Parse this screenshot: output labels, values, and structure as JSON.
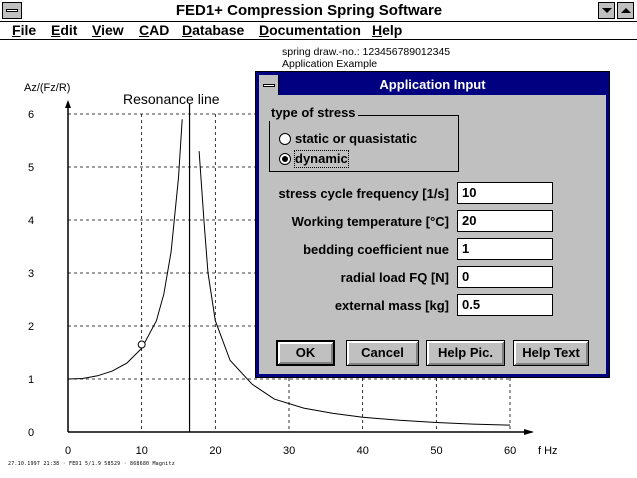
{
  "window": {
    "title": "FED1+   Compression Spring Software"
  },
  "menu": [
    {
      "label": "File"
    },
    {
      "label": "Edit"
    },
    {
      "label": "View"
    },
    {
      "label": "CAD"
    },
    {
      "label": "Database"
    },
    {
      "label": "Documentation"
    },
    {
      "label": "Help"
    }
  ],
  "spring_info": {
    "line1": "spring   draw.-no.: 123456789012345",
    "line2": "Application Example"
  },
  "footer_stamp": "27.10.1997 21:38 · FED1 5/1.9 58529 · 868680 Magnitz",
  "chart_data": {
    "type": "line",
    "ylabel": "Az/(Fz/R)",
    "xlabel": "f Hz",
    "annotation": "Resonance line",
    "xlim": [
      0,
      60
    ],
    "ylim": [
      0,
      6
    ],
    "x_ticks": [
      "0",
      "10",
      "20",
      "30",
      "40",
      "50",
      "60"
    ],
    "y_ticks": [
      "0",
      "1",
      "2",
      "3",
      "4",
      "5",
      "6"
    ],
    "resonance_frequency": 16.5,
    "operating_point": {
      "x": 10,
      "y": 1.65
    },
    "grid": "dashed",
    "series": [
      {
        "x": [
          0,
          2,
          4,
          6,
          8,
          10,
          12,
          13,
          14,
          15,
          15.5
        ],
        "y": [
          1.0,
          1.01,
          1.06,
          1.15,
          1.3,
          1.58,
          2.1,
          2.6,
          3.4,
          4.8,
          5.9
        ]
      },
      {
        "x": [
          17.8,
          18.5,
          19,
          20,
          22,
          25,
          28,
          32,
          36,
          40,
          45,
          50,
          55,
          60
        ],
        "y": [
          5.3,
          3.9,
          3.0,
          2.1,
          1.35,
          0.9,
          0.62,
          0.45,
          0.35,
          0.28,
          0.22,
          0.18,
          0.15,
          0.13
        ]
      }
    ]
  },
  "dialog": {
    "title": "Application Input",
    "stress_group": {
      "legend": "type of stress",
      "options": [
        {
          "label": "static or quasistatic",
          "checked": false
        },
        {
          "label": "dynamic",
          "checked": true
        }
      ]
    },
    "fields": [
      {
        "label": "stress cycle frequency [1/s]",
        "value": "10"
      },
      {
        "label": "Working temperature [°C]",
        "value": "20"
      },
      {
        "label": "bedding coefficient nue",
        "value": "1"
      },
      {
        "label": "radial load FQ [N]",
        "value": "0"
      },
      {
        "label": "external mass [kg]",
        "value": "0.5"
      }
    ],
    "buttons": {
      "ok": "OK",
      "cancel": "Cancel",
      "help_pic": "Help Pic.",
      "help_text": "Help Text"
    }
  }
}
